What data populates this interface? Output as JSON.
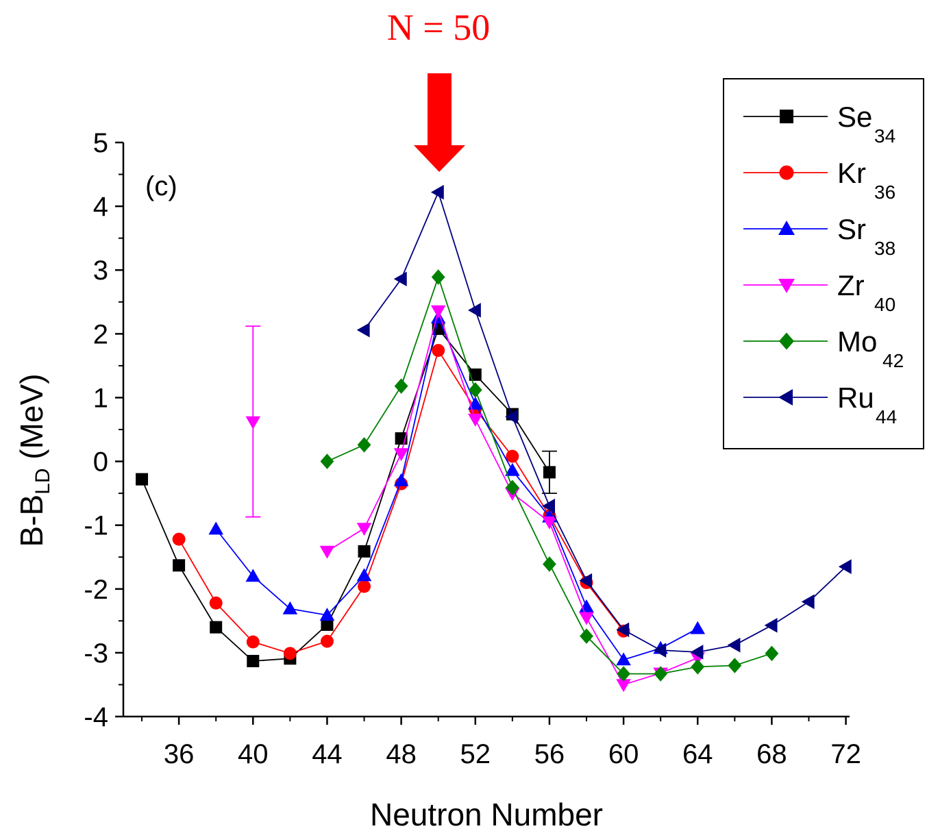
{
  "chart_data": {
    "type": "line",
    "annotation": "N = 50",
    "annotation_color": "#ff0000",
    "panel_label": "(c)",
    "xlabel": "Neutron Number",
    "ylabel_main": "B-B",
    "ylabel_sub": "LD",
    "ylabel_unit": " (MeV)",
    "xlim": [
      33,
      72.2
    ],
    "ylim": [
      -4,
      5
    ],
    "x_ticks": [
      36,
      40,
      44,
      48,
      52,
      56,
      60,
      64,
      68,
      72
    ],
    "x_minor_ticks": [
      34,
      38,
      42,
      46,
      50,
      54,
      58,
      62,
      66,
      70
    ],
    "y_ticks": [
      -4,
      -3,
      -2,
      -1,
      0,
      1,
      2,
      3,
      4,
      5
    ],
    "legend_position": "top-right",
    "series": [
      {
        "name": "Se",
        "sub": "34",
        "color": "#000000",
        "marker": "square",
        "x": [
          34,
          36,
          38,
          40,
          42,
          44,
          46,
          48,
          50,
          52,
          54,
          56
        ],
        "y": [
          -0.28,
          -1.63,
          -2.6,
          -3.13,
          -3.09,
          -2.56,
          -1.41,
          0.36,
          2.08,
          1.36,
          0.74,
          -0.17
        ],
        "errorbars": [
          {
            "x": 56,
            "low": -0.5,
            "high": 0.16
          }
        ]
      },
      {
        "name": "Kr",
        "sub": "36",
        "color": "#ff0000",
        "marker": "circle",
        "x": [
          36,
          38,
          40,
          42,
          44,
          46,
          48,
          50,
          52,
          54,
          56,
          58,
          60
        ],
        "y": [
          -1.22,
          -2.22,
          -2.83,
          -3.01,
          -2.82,
          -1.96,
          -0.35,
          1.74,
          0.82,
          0.08,
          -0.85,
          -1.9,
          -2.66
        ]
      },
      {
        "name": "Sr",
        "sub": "38",
        "color": "#0000ff",
        "marker": "triangle-up",
        "x": [
          38,
          40,
          42,
          44,
          46,
          48,
          50,
          52,
          54,
          56,
          58,
          60,
          62,
          64
        ],
        "y": [
          -1.06,
          -1.8,
          -2.31,
          -2.41,
          -1.79,
          -0.3,
          2.25,
          0.9,
          -0.14,
          -0.87,
          -2.28,
          -3.11,
          -2.93,
          -2.62
        ]
      },
      {
        "name": "Zr",
        "sub": "40",
        "color": "#ff00ff",
        "marker": "triangle-down",
        "x": [
          40,
          44,
          46,
          48,
          50,
          52,
          54,
          56,
          58,
          60,
          62,
          64
        ],
        "y": [
          0.62,
          -1.41,
          -1.05,
          0.12,
          2.36,
          0.66,
          -0.5,
          -0.95,
          -2.45,
          -3.5,
          -3.32,
          -3.08
        ],
        "errorbars": [
          {
            "x": 40,
            "low": -0.87,
            "high": 2.12
          }
        ],
        "segments": [
          [
            1,
            11
          ]
        ]
      },
      {
        "name": "Mo",
        "sub": "42",
        "color": "#008000",
        "marker": "diamond",
        "x": [
          44,
          46,
          48,
          50,
          52,
          54,
          56,
          58,
          60,
          62,
          64,
          66,
          68
        ],
        "y": [
          0.0,
          0.26,
          1.18,
          2.89,
          1.12,
          -0.41,
          -1.61,
          -2.74,
          -3.33,
          -3.33,
          -3.22,
          -3.2,
          -3.01
        ]
      },
      {
        "name": "Ru",
        "sub": "44",
        "color": "#000080",
        "marker": "triangle-left",
        "x": [
          46,
          48,
          50,
          52,
          54,
          56,
          58,
          60,
          62,
          64,
          66,
          68,
          70,
          72
        ],
        "y": [
          2.06,
          2.86,
          4.22,
          2.37,
          0.7,
          -0.7,
          -1.87,
          -2.64,
          -2.96,
          -2.99,
          -2.88,
          -2.57,
          -2.2,
          -1.65
        ]
      }
    ]
  }
}
